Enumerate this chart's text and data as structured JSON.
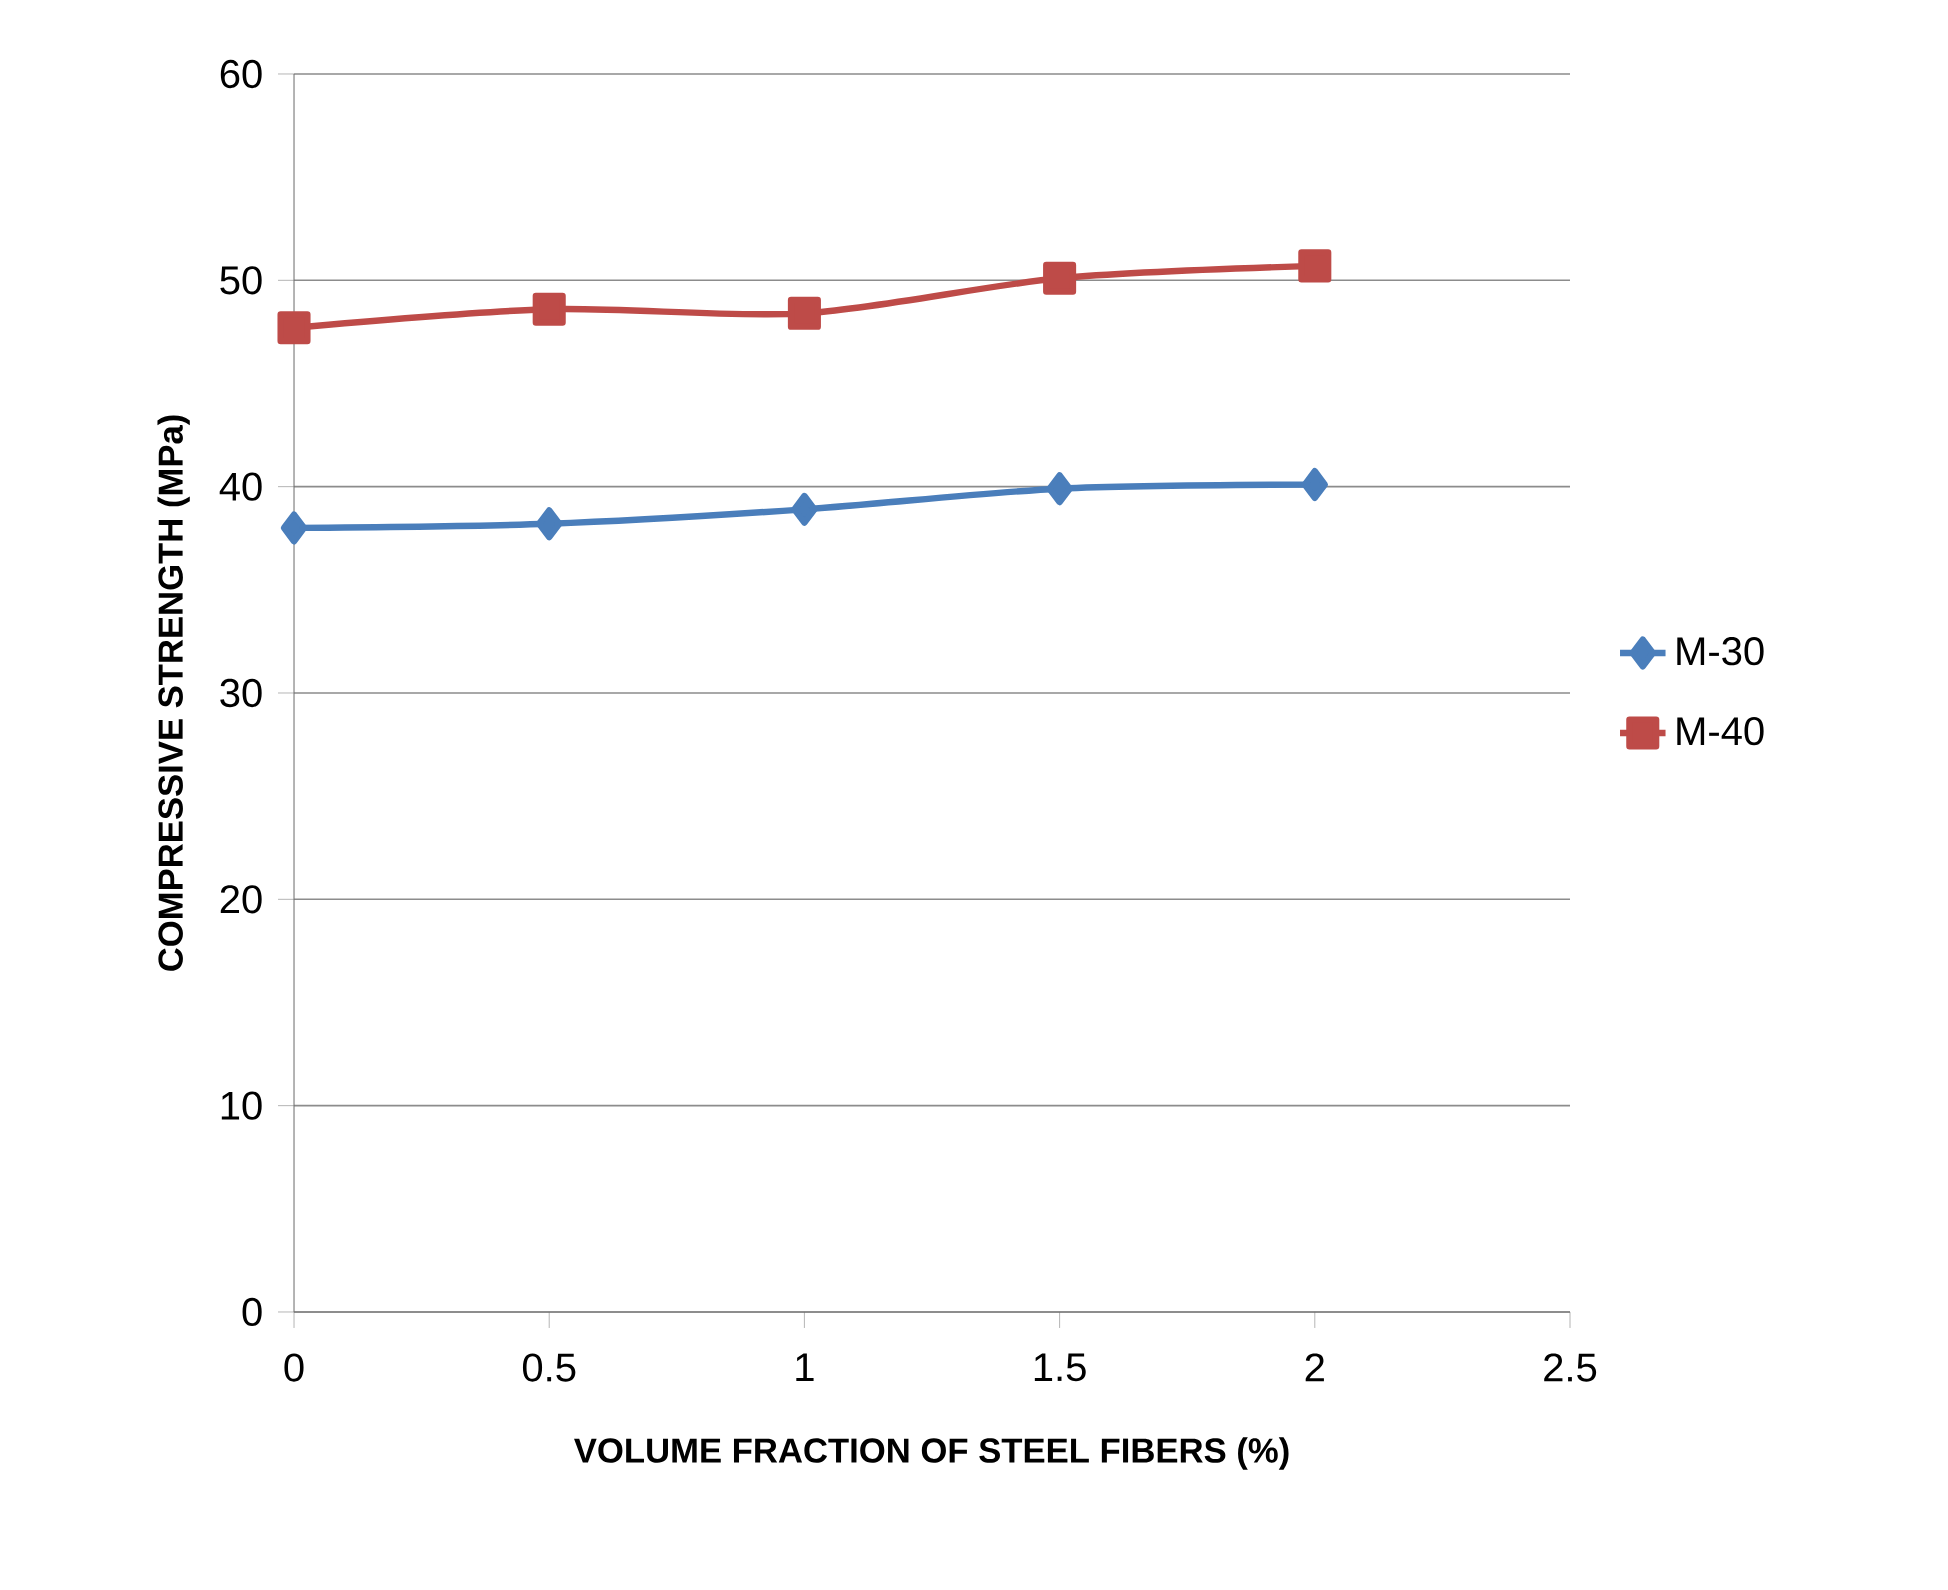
{
  "chart_data": {
    "type": "line",
    "xlabel": "VOLUME FRACTION OF STEEL FIBERS (%)",
    "ylabel": "COMPRESSIVE STRENGTH (MPa)",
    "x": [
      0,
      0.5,
      1,
      1.5,
      2
    ],
    "series": [
      {
        "name": "M-30",
        "color": "#4a7ebb",
        "marker": "diamond",
        "values": [
          38.0,
          38.2,
          38.9,
          39.9,
          40.1
        ]
      },
      {
        "name": "M-40",
        "color": "#be4b48",
        "marker": "square",
        "values": [
          47.7,
          48.6,
          48.4,
          50.1,
          50.7
        ]
      }
    ],
    "xlim": [
      0,
      2.5
    ],
    "xticks": [
      0,
      0.5,
      1,
      1.5,
      2,
      2.5
    ],
    "ylim": [
      0,
      60
    ],
    "yticks": [
      0,
      10,
      20,
      30,
      40,
      50,
      60
    ],
    "grid": "y",
    "legend": "right",
    "line_style": "solid"
  }
}
